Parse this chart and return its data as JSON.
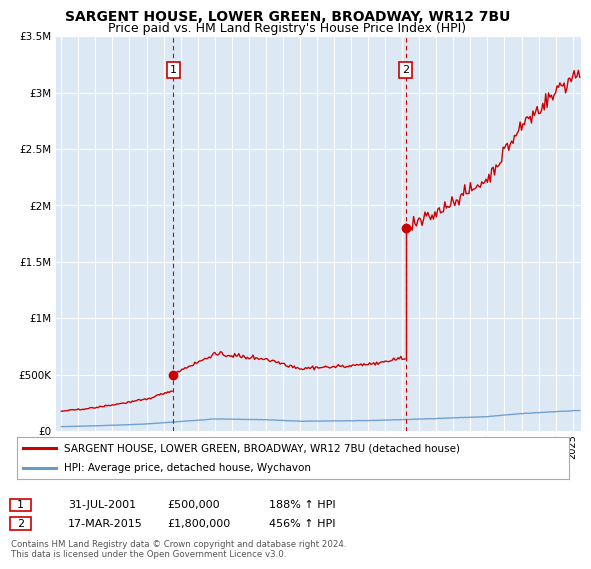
{
  "title": "SARGENT HOUSE, LOWER GREEN, BROADWAY, WR12 7BU",
  "subtitle": "Price paid vs. HM Land Registry's House Price Index (HPI)",
  "background_color": "#ffffff",
  "plot_bg_color": "#dce9f5",
  "grid_color": "#ffffff",
  "ylim": [
    0,
    3500000
  ],
  "yticks": [
    0,
    500000,
    1000000,
    1500000,
    2000000,
    2500000,
    3000000,
    3500000
  ],
  "ytick_labels": [
    "£0",
    "£500K",
    "£1M",
    "£1.5M",
    "£2M",
    "£2.5M",
    "£3M",
    "£3.5M"
  ],
  "xlim_start": 1994.7,
  "xlim_end": 2025.5,
  "sale1_x": 2001.58,
  "sale1_y": 500000,
  "sale2_x": 2015.21,
  "sale2_y": 1800000,
  "sale1_label": "1",
  "sale2_label": "2",
  "hpi_line_color": "#6699cc",
  "property_line_color": "#cc0000",
  "dashed_line_color": "#cc0000",
  "legend_property": "SARGENT HOUSE, LOWER GREEN, BROADWAY, WR12 7BU (detached house)",
  "legend_hpi": "HPI: Average price, detached house, Wychavon",
  "table_row1": [
    "1",
    "31-JUL-2001",
    "£500,000",
    "188% ↑ HPI"
  ],
  "table_row2": [
    "2",
    "17-MAR-2015",
    "£1,800,000",
    "456% ↑ HPI"
  ],
  "footnote": "Contains HM Land Registry data © Crown copyright and database right 2024.\nThis data is licensed under the Open Government Licence v3.0.",
  "title_fontsize": 10,
  "subtitle_fontsize": 9,
  "tick_fontsize": 7.5
}
